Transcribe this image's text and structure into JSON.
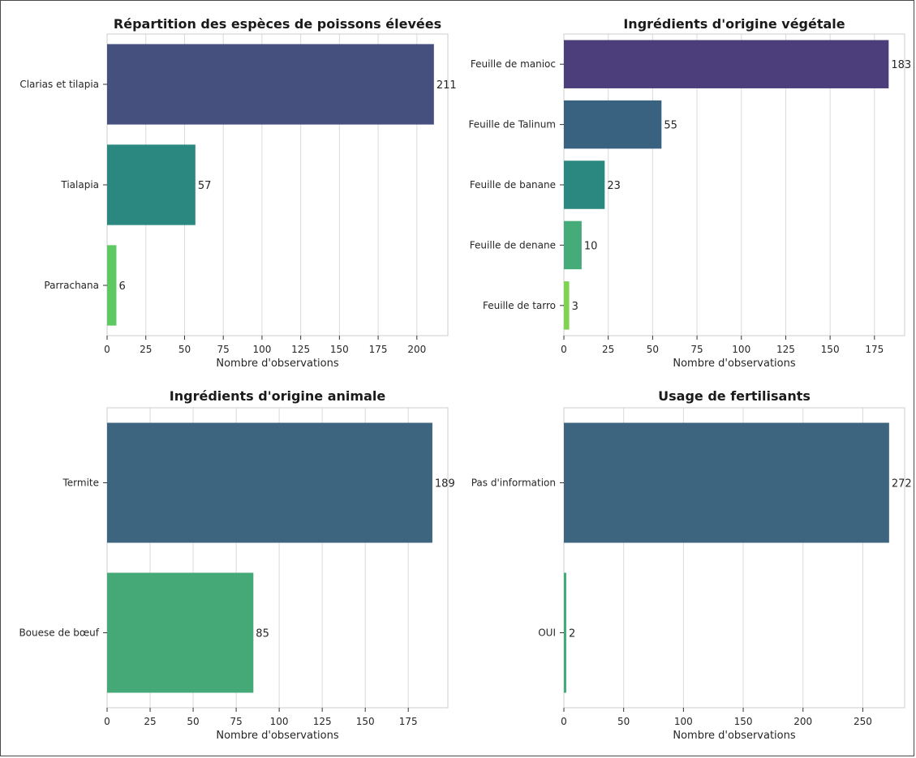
{
  "chart_data": [
    {
      "type": "bar",
      "orientation": "horizontal",
      "title": "Répartition des espèces de poissons élevées",
      "xlabel": "Nombre d'observations",
      "ylabel": "",
      "xlim": [
        0,
        220
      ],
      "xticks": [
        0,
        25,
        50,
        75,
        100,
        125,
        150,
        175,
        200
      ],
      "categories": [
        "Clarias et tilapia",
        "Tialapia",
        "Parrachana"
      ],
      "values": [
        211,
        57,
        6
      ],
      "colors": [
        "#46507e",
        "#2a8880",
        "#5ec962"
      ],
      "grid": true
    },
    {
      "type": "bar",
      "orientation": "horizontal",
      "title": "Ingrédients d'origine végétale",
      "xlabel": "Nombre d'observations",
      "ylabel": "",
      "xlim": [
        0,
        192
      ],
      "xticks": [
        0,
        25,
        50,
        75,
        100,
        125,
        150,
        175
      ],
      "categories": [
        "Feuille de manioc",
        "Feuille de Talinum",
        "Feuille de banane",
        "Feuille de denane",
        "Feuille de tarro"
      ],
      "values": [
        183,
        55,
        23,
        10,
        3
      ],
      "colors": [
        "#4b3e7a",
        "#38627f",
        "#2a8880",
        "#44ab79",
        "#7ed34f"
      ],
      "grid": true
    },
    {
      "type": "bar",
      "orientation": "horizontal",
      "title": "Ingrédients d'origine animale",
      "xlabel": "Nombre d'observations",
      "ylabel": "",
      "xlim": [
        0,
        198
      ],
      "xticks": [
        0,
        25,
        50,
        75,
        100,
        125,
        150,
        175
      ],
      "categories": [
        "Termite",
        "Bouese de bœuf"
      ],
      "values": [
        189,
        85
      ],
      "colors": [
        "#3d657f",
        "#45a877"
      ],
      "grid": true
    },
    {
      "type": "bar",
      "orientation": "horizontal",
      "title": "Usage de fertilisants",
      "xlabel": "Nombre d'observations",
      "ylabel": "",
      "xlim": [
        0,
        285
      ],
      "xticks": [
        0,
        50,
        100,
        150,
        200,
        250
      ],
      "categories": [
        "Pas d'information",
        "OUI"
      ],
      "values": [
        272,
        2
      ],
      "colors": [
        "#3d657f",
        "#45a877"
      ],
      "grid": true
    }
  ]
}
